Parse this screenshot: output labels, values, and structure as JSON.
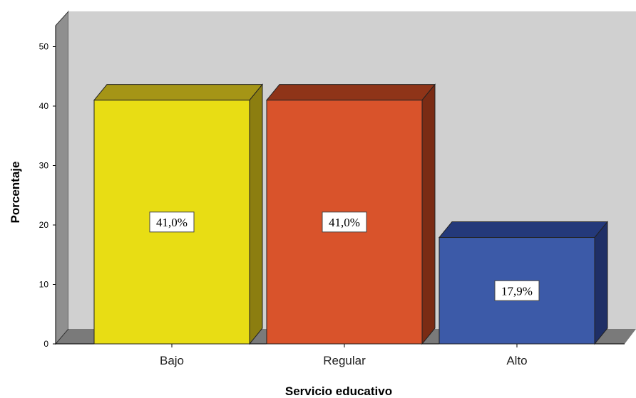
{
  "chart_data": {
    "type": "bar",
    "xlabel": "Servicio educativo",
    "ylabel": "Porcentaje",
    "categories": [
      "Bajo",
      "Regular",
      "Alto"
    ],
    "values": [
      41.0,
      41.0,
      17.9
    ],
    "data_labels": [
      "41,0%",
      "41,0%",
      "17,9%"
    ],
    "ylim": [
      0,
      55
    ],
    "yticks": [
      "0",
      "10",
      "20",
      "30",
      "40",
      "50"
    ],
    "ytick_values": [
      0,
      10,
      20,
      30,
      40,
      50
    ],
    "grid": false,
    "style": "3d",
    "colors": {
      "bars": [
        "#e8dd14",
        "#d9532b",
        "#3c5aa8"
      ],
      "bar_tops": [
        "#a59516",
        "#8f3418",
        "#24397a"
      ],
      "bar_sides": [
        "#8c7e10",
        "#7a2b14",
        "#1f2f66"
      ],
      "wall": "#d0d0d0",
      "wall_left": "#8f8f8f",
      "floor": "#7a7a7a"
    }
  }
}
